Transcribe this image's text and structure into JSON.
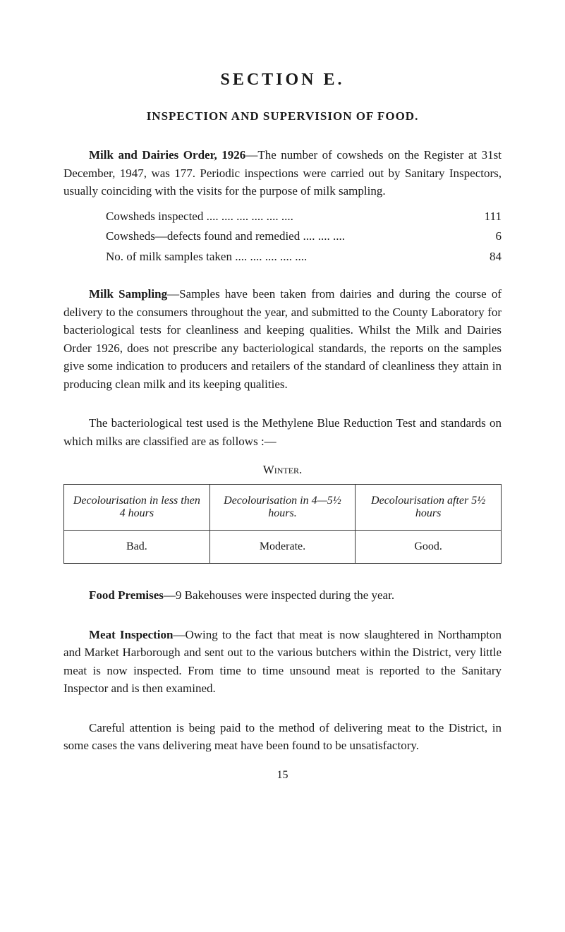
{
  "section": {
    "heading": "SECTION E.",
    "subheading": "INSPECTION AND SUPERVISION OF FOOD."
  },
  "milk_dairies": {
    "lead_bold": "Milk and Dairies Order, 1926",
    "lead_rest": "—The number of cowsheds on the Register at 31st December, 1947, was 177. Periodic inspections were carried out by Sanitary Inspectors, usually coinciding with the visits for the purpose of milk sampling."
  },
  "data_lines": [
    {
      "label": "Cowsheds inspected ....    ....    ....    ....    ....    ....",
      "value": "111"
    },
    {
      "label": "Cowsheds—defects found and remedied ....    ....    ....",
      "value": "6"
    },
    {
      "label": "No. of milk samples taken ....    ....    ....    ....    ....",
      "value": "84"
    }
  ],
  "milk_sampling": {
    "lead_bold": "Milk Sampling",
    "lead_rest": "—Samples have been taken from dairies and during the course of delivery to the consumers throughout the year, and submitted to the County Laboratory for bacteriological tests for cleanliness and keeping qualities. Whilst the Milk and Dairies Order 1926, does not prescribe any bacteriological standards, the reports on the samples give some indication to producers and retailers of the standard of cleanliness they attain in producing clean milk and its keeping qualities."
  },
  "bacteriological": "The bacteriological test used is the Methylene Blue Reduction Test and standards on which milks are classified are as follows :—",
  "winter_label": "Winter.",
  "table": {
    "headers": [
      "Decolourisation in less then 4 hours",
      "Decolourisation in 4—5½ hours.",
      "Decolourisation after 5½ hours"
    ],
    "row": [
      "Bad.",
      "Moderate.",
      "Good."
    ]
  },
  "food_premises": {
    "lead_bold": "Food Premises",
    "lead_rest": "—9 Bakehouses were inspected during the year."
  },
  "meat_inspection": {
    "lead_bold": "Meat Inspection",
    "lead_rest": "—Owing to the fact that meat is now slaughtered in Northampton and Market Harborough and sent out to the various butchers within the District, very little meat is now inspected. From time to time unsound meat is reported to the Sanitary Inspector and is then examined."
  },
  "careful_attention": "Careful attention is being paid to the method of delivering meat to the District, in some cases the vans delivering meat have been found to be unsatisfactory.",
  "page_number": "15"
}
